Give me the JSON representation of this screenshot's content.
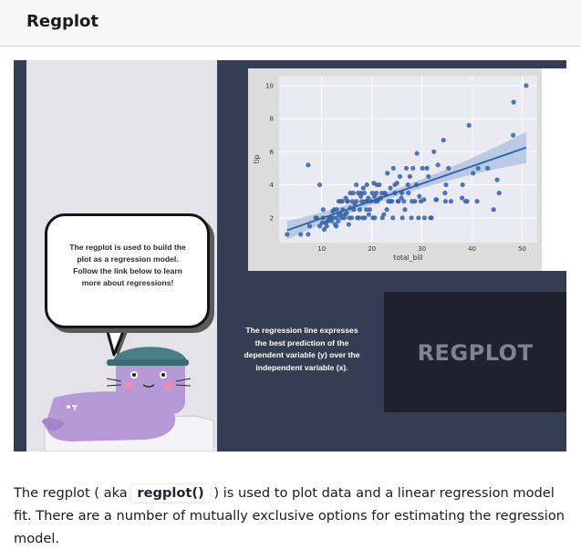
{
  "header": {
    "title": "Regplot"
  },
  "slide": {
    "bubble_text": "The regplot is used to build the\nplot as a regression model.\nFollow the link below to learn\nmore about regressions!",
    "caption": "The regression line expresses\nthe best prediction of the\ndependent variable (y) over the\nindependent variable (x).",
    "logo": "REGPLOT"
  },
  "description": {
    "part1": "The regplot ( aka ",
    "code": "regplot()",
    "part2": " ) is used to plot data and a linear regression model fit. There are a number of mutually exclusive options for estimating the regression model."
  },
  "colors": {
    "panel": "#353d52",
    "point": "#3a64a8",
    "line": "#2f5fa6",
    "ci_band": "#a9bfe0",
    "plot_bg": "#eaeaf2"
  },
  "chart_data": {
    "type": "scatter",
    "xlabel": "total_bill",
    "ylabel": "tip",
    "xlim": [
      1.5,
      53
    ],
    "ylim": [
      0.5,
      10.6
    ],
    "xticks": [
      10,
      20,
      30,
      40,
      50
    ],
    "yticks": [
      2,
      4,
      6,
      8,
      10
    ],
    "grid": true,
    "regression": {
      "intercept": 0.92,
      "slope": 0.105
    },
    "points": [
      [
        3.1,
        1.0
      ],
      [
        5.8,
        1.0
      ],
      [
        7.3,
        1.0
      ],
      [
        7.6,
        1.5
      ],
      [
        8.8,
        2.0
      ],
      [
        9.6,
        1.5
      ],
      [
        10.1,
        1.7
      ],
      [
        10.3,
        2.0
      ],
      [
        10.5,
        1.3
      ],
      [
        10.8,
        1.7
      ],
      [
        11.0,
        1.5
      ],
      [
        11.4,
        1.9
      ],
      [
        11.6,
        2.0
      ],
      [
        12.0,
        1.8
      ],
      [
        12.3,
        2.0
      ],
      [
        12.5,
        2.5
      ],
      [
        12.7,
        1.6
      ],
      [
        13.0,
        2.0
      ],
      [
        13.3,
        1.8
      ],
      [
        13.5,
        2.2
      ],
      [
        13.8,
        3.0
      ],
      [
        14.0,
        2.0
      ],
      [
        14.2,
        2.5
      ],
      [
        14.5,
        2.0
      ],
      [
        14.8,
        3.2
      ],
      [
        15.0,
        2.3
      ],
      [
        15.2,
        3.0
      ],
      [
        15.4,
        1.6
      ],
      [
        15.7,
        2.6
      ],
      [
        16.0,
        2.0
      ],
      [
        16.3,
        3.5
      ],
      [
        16.6,
        2.8
      ],
      [
        16.9,
        3.0
      ],
      [
        17.1,
        2.0
      ],
      [
        17.3,
        3.5
      ],
      [
        17.6,
        2.5
      ],
      [
        17.8,
        3.3
      ],
      [
        18.0,
        3.0
      ],
      [
        18.2,
        2.0
      ],
      [
        18.5,
        3.5
      ],
      [
        18.7,
        3.0
      ],
      [
        19.0,
        4.0
      ],
      [
        19.3,
        3.2
      ],
      [
        19.6,
        2.5
      ],
      [
        19.8,
        3.0
      ],
      [
        20.1,
        3.5
      ],
      [
        20.4,
        4.1
      ],
      [
        20.6,
        2.0
      ],
      [
        20.9,
        3.5
      ],
      [
        21.1,
        3.0
      ],
      [
        21.5,
        4.0
      ],
      [
        21.8,
        3.2
      ],
      [
        22.0,
        3.5
      ],
      [
        22.4,
        2.2
      ],
      [
        22.8,
        3.4
      ],
      [
        23.1,
        4.7
      ],
      [
        23.3,
        3.0
      ],
      [
        23.7,
        3.8
      ],
      [
        24.0,
        3.0
      ],
      [
        24.3,
        5.0
      ],
      [
        24.6,
        3.5
      ],
      [
        25.0,
        4.1
      ],
      [
        25.3,
        3.0
      ],
      [
        25.6,
        4.5
      ],
      [
        26.0,
        3.5
      ],
      [
        26.4,
        3.0
      ],
      [
        26.9,
        5.0
      ],
      [
        27.2,
        4.0
      ],
      [
        27.6,
        4.5
      ],
      [
        28.0,
        3.0
      ],
      [
        28.2,
        5.0
      ],
      [
        28.6,
        3.0
      ],
      [
        29.0,
        5.9
      ],
      [
        29.3,
        2.0
      ],
      [
        29.8,
        3.0
      ],
      [
        30.1,
        5.0
      ],
      [
        30.4,
        3.1
      ],
      [
        31.0,
        5.0
      ],
      [
        31.3,
        4.5
      ],
      [
        31.7,
        2.0
      ],
      [
        32.4,
        6.0
      ],
      [
        32.8,
        3.1
      ],
      [
        33.2,
        5.2
      ],
      [
        34.3,
        6.7
      ],
      [
        34.6,
        3.5
      ],
      [
        34.8,
        4.0
      ],
      [
        35.3,
        5.0
      ],
      [
        38.1,
        4.0
      ],
      [
        38.7,
        3.0
      ],
      [
        39.4,
        7.6
      ],
      [
        40.2,
        4.7
      ],
      [
        41.2,
        5.0
      ],
      [
        43.1,
        5.0
      ],
      [
        44.3,
        2.5
      ],
      [
        45.4,
        3.5
      ],
      [
        48.2,
        7.0
      ],
      [
        48.3,
        9.0
      ],
      [
        50.8,
        10.0
      ],
      [
        7.3,
        5.2
      ],
      [
        9.6,
        4.0
      ],
      [
        11.9,
        2.0
      ],
      [
        13.4,
        3.0
      ],
      [
        15.1,
        3.0
      ],
      [
        16.9,
        4.0
      ],
      [
        18.3,
        3.8
      ],
      [
        19.4,
        2.2
      ],
      [
        20.7,
        3.0
      ],
      [
        22.1,
        2.0
      ],
      [
        24.6,
        4.0
      ],
      [
        26.6,
        2.5
      ],
      [
        27.9,
        2.0
      ],
      [
        30.5,
        2.0
      ],
      [
        32.9,
        3.1
      ],
      [
        35.8,
        3.0
      ],
      [
        38.0,
        3.2
      ],
      [
        41.0,
        3.0
      ],
      [
        15.7,
        3.5
      ],
      [
        17.4,
        2.0
      ],
      [
        12.9,
        1.5
      ],
      [
        10.3,
        2.5
      ],
      [
        16.4,
        2.5
      ],
      [
        18.6,
        2.0
      ],
      [
        21.0,
        4.0
      ],
      [
        23.7,
        3.0
      ],
      [
        25.2,
        3.0
      ],
      [
        14.1,
        3.0
      ],
      [
        13.0,
        2.5
      ],
      [
        17.8,
        3.5
      ],
      [
        19.1,
        3.0
      ],
      [
        20.5,
        3.3
      ],
      [
        22.6,
        3.5
      ],
      [
        9.0,
        2.0
      ],
      [
        11.2,
        1.8
      ],
      [
        15.5,
        2.0
      ],
      [
        12.2,
        2.4
      ],
      [
        14.7,
        2.2
      ],
      [
        16.1,
        3.0
      ],
      [
        13.8,
        2.2
      ],
      [
        18.9,
        2.5
      ],
      [
        21.3,
        3.1
      ],
      [
        24.2,
        2.0
      ],
      [
        27.3,
        3.5
      ],
      [
        29.5,
        3.3
      ],
      [
        31.9,
        2.0
      ],
      [
        34.7,
        3.0
      ],
      [
        39.0,
        3.0
      ],
      [
        45.0,
        4.3
      ],
      [
        26.1,
        2.0
      ],
      [
        28.9,
        4.0
      ],
      [
        23.0,
        2.5
      ],
      [
        25.9,
        3.2
      ],
      [
        20.2,
        2.0
      ]
    ]
  }
}
